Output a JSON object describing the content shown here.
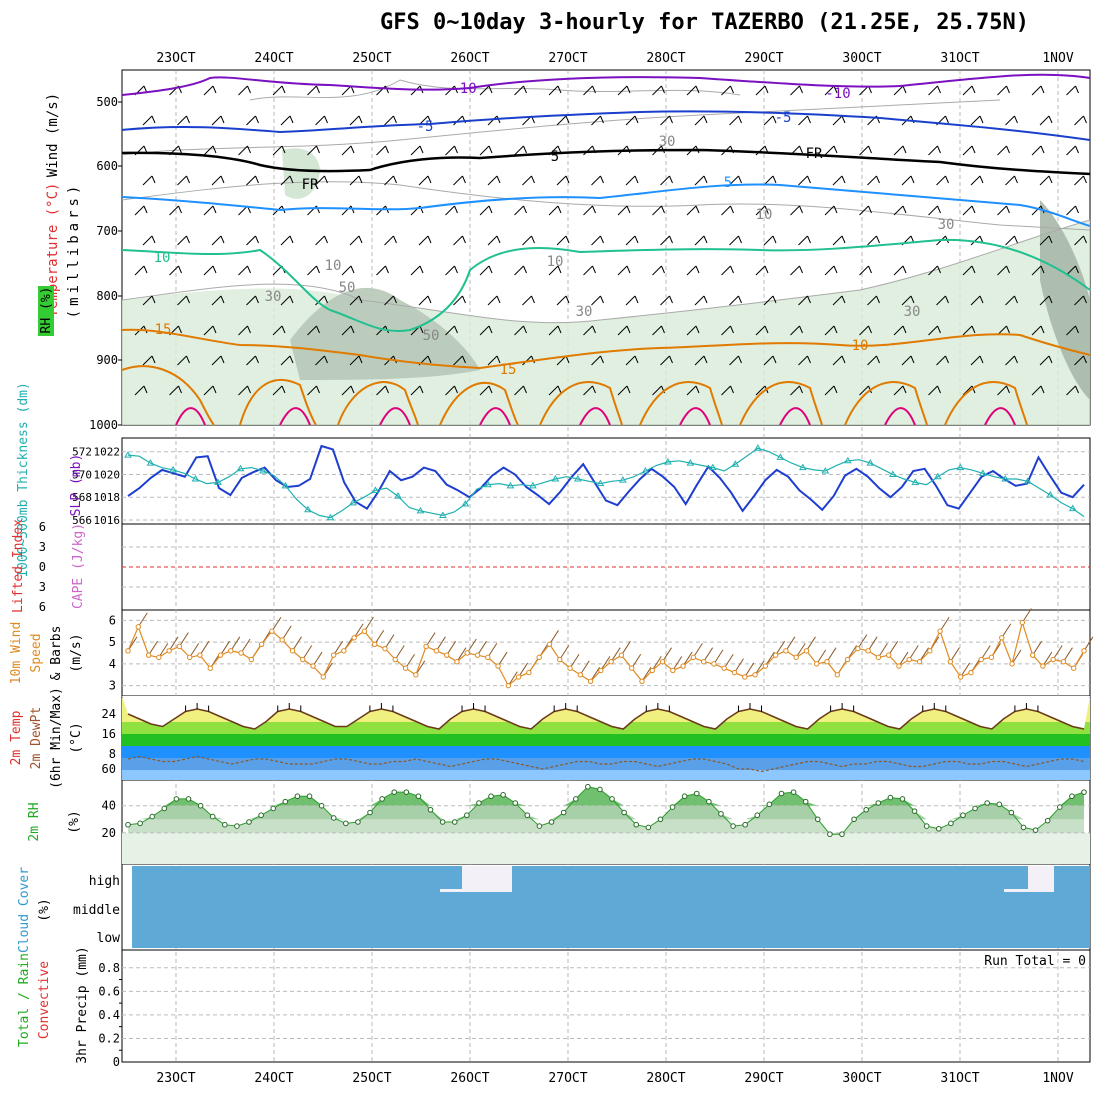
{
  "title": "GFS 0~10day 3-hourly for TAZERBO (21.25E, 25.75N)",
  "dates": [
    "23OCT",
    "24OCT",
    "25OCT",
    "26OCT",
    "27OCT",
    "28OCT",
    "29OCT",
    "30OCT",
    "31OCT",
    "1NOV"
  ],
  "colors": {
    "temp_warm": "#e07a00",
    "temp_hot": "#e0007a",
    "temp_mid": "#20c090",
    "temp_cool": "#1e90ff",
    "temp_cold": "#1a3fcc",
    "temp_vcold": "#7a10c0",
    "slp": "#1e3ed0",
    "thickness": "#20b0b0",
    "wind_speed": "#e08a20",
    "rh_fill": "#2a9d2a",
    "cloud": "#5ea9d6",
    "zero_line": "#e03030"
  },
  "panels": {
    "upper": {
      "ylabel_units": "(millibars)",
      "axis_labels": [
        {
          "text": "Wind (m/s)",
          "color": "#000"
        },
        {
          "text": "Temperature (°C)",
          "color": "#e03030"
        },
        {
          "text": "RH (%)",
          "color": "#000"
        }
      ],
      "pressure_ticks": [
        "500",
        "600",
        "700",
        "800",
        "900",
        "1000"
      ],
      "contour_labels": [
        "-10",
        "-5",
        "FR",
        "5",
        "10",
        "15",
        "15",
        "-10",
        "-5",
        "FR",
        "5",
        "10",
        "30",
        "50",
        "30",
        "50",
        "10",
        "30",
        "10",
        "30",
        "30",
        "10"
      ]
    },
    "slp": {
      "ylabel_left": "1000~500mb Thickness (dm)",
      "ylabel_right": "SLP (mb)",
      "left_ticks": [
        "572",
        "570",
        "568",
        "566"
      ],
      "right_ticks": [
        "1022",
        "1020",
        "1018",
        "1016"
      ]
    },
    "cape": {
      "ylabel_left": "Lifted Index",
      "ylabel_right": "CAPE (J/kg)",
      "ticks": [
        "6",
        "3",
        "0",
        "3",
        "6"
      ]
    },
    "wind10": {
      "ylabel_1": "10m Wind",
      "ylabel_2": "Speed",
      "ylabel_3": "& Barbs",
      "units": "(m/s)",
      "ticks": [
        "6",
        "5",
        "4",
        "3"
      ]
    },
    "temp2m": {
      "ylabel_1": "2m Temp",
      "ylabel_2": "2m DewPt",
      "ylabel_3": "(6hr Min/Max)",
      "units": "(°C)",
      "ticks": [
        "24",
        "16",
        "8",
        "60"
      ]
    },
    "rh2m": {
      "ylabel": "2m RH",
      "units": "(%)",
      "ticks": [
        "40",
        "20"
      ]
    },
    "cloud": {
      "ylabel": "Cloud Cover",
      "units": "(%)",
      "levels": [
        "high",
        "middle",
        "low"
      ]
    },
    "precip": {
      "ylabel_1": "Total / Rain",
      "ylabel_2": "Convective",
      "ylabel_3": "3hr Precip (mm)",
      "ticks": [
        "0.8",
        "0.6",
        "0.4",
        "0.2",
        "0"
      ],
      "run_total": "Run Total = 0"
    }
  },
  "chart_data": [
    {
      "type": "line",
      "title": "",
      "xlabel": "",
      "ylabel": "SLP (mb)",
      "series": [
        {
          "name": "SLP (mb)",
          "values": [
            1018.1,
            1018.8,
            1019.7,
            1020.4,
            1020.1,
            1019.8,
            1021.5,
            1021.6,
            1018.8,
            1018.2,
            1019.7,
            1020.2,
            1020.6,
            1019.5,
            1018.9,
            1019.0,
            1019.6,
            1022.5,
            1022.2,
            1019.3,
            1017.6,
            1017.0,
            1018.5,
            1020.3,
            1019.5,
            1019.8,
            1020.6,
            1020.3,
            1019.1,
            1018.6,
            1018.0,
            1018.8,
            1019.9,
            1020.6,
            1020.0,
            1018.9,
            1018.2,
            1017.4,
            1018.5,
            1019.8,
            1020.9,
            1019.3,
            1017.7,
            1017.3,
            1018.5,
            1019.6,
            1020.5,
            1019.8,
            1018.9,
            1017.4,
            1019.1,
            1020.7,
            1019.7,
            1018.4,
            1016.8,
            1018.1,
            1019.5,
            1020.4,
            1019.8,
            1018.6,
            1017.8,
            1016.9,
            1018.1,
            1019.9,
            1020.5,
            1019.8,
            1018.8,
            1018.0,
            1018.9,
            1020.3,
            1020.5,
            1019.0,
            1017.3,
            1017.0,
            1018.4,
            1019.8,
            1020.3,
            1019.6,
            1019.0,
            1019.2,
            1021.5,
            1019.9,
            1018.4,
            1018.0,
            1019.1
          ]
        },
        {
          "name": "1000~500mb Thickness (dm)",
          "values": [
            571.7,
            571.6,
            571.0,
            570.6,
            570.4,
            570.1,
            569.6,
            569.2,
            569.3,
            569.8,
            570.5,
            570.6,
            570.3,
            569.9,
            569.0,
            567.8,
            566.9,
            566.4,
            566.2,
            566.8,
            567.5,
            568.0,
            568.6,
            568.8,
            568.1,
            567.1,
            566.8,
            566.6,
            566.4,
            566.7,
            567.4,
            568.7,
            569.1,
            569.2,
            569.0,
            569.1,
            569.0,
            569.3,
            569.6,
            569.8,
            569.6,
            569.4,
            569.2,
            569.4,
            569.5,
            569.8,
            570.3,
            570.8,
            571.1,
            571.2,
            571.0,
            570.8,
            570.6,
            570.3,
            570.9,
            571.6,
            572.3,
            572.0,
            571.5,
            571.0,
            570.6,
            570.4,
            570.3,
            570.8,
            571.2,
            571.3,
            571.0,
            570.5,
            570.0,
            569.6,
            569.3,
            569.1,
            569.8,
            570.4,
            570.6,
            570.4,
            570.1,
            569.8,
            569.6,
            569.6,
            569.4,
            568.8,
            568.2,
            567.5,
            567.0,
            566.3
          ]
        }
      ]
    },
    {
      "type": "line",
      "title": "",
      "xlabel": "",
      "ylabel": "10m Wind Speed (m/s)",
      "series": [
        {
          "name": "10m Wind Speed",
          "values": [
            4.6,
            5.7,
            4.4,
            4.3,
            4.6,
            4.8,
            4.3,
            4.4,
            3.8,
            4.4,
            4.6,
            4.5,
            4.2,
            4.9,
            5.5,
            5.1,
            4.6,
            4.2,
            3.9,
            3.4,
            4.4,
            4.6,
            5.2,
            5.5,
            4.9,
            4.7,
            4.2,
            3.8,
            3.5,
            4.8,
            4.6,
            4.4,
            4.1,
            4.5,
            4.4,
            4.3,
            3.9,
            3.0,
            3.4,
            3.6,
            4.3,
            4.9,
            4.2,
            3.8,
            3.5,
            3.2,
            3.7,
            4.1,
            4.4,
            3.8,
            3.2,
            3.7,
            4.1,
            3.7,
            3.9,
            4.3,
            4.1,
            4.0,
            3.8,
            3.6,
            3.4,
            3.5,
            3.9,
            4.4,
            4.6,
            4.3,
            4.6,
            4.0,
            4.1,
            3.5,
            4.2,
            4.7,
            4.6,
            4.3,
            4.4,
            3.9,
            4.2,
            4.1,
            4.6,
            5.5,
            4.1,
            3.4,
            3.6,
            4.2,
            4.3,
            5.2,
            4.0,
            5.9,
            4.4,
            3.9,
            4.2,
            4.1,
            3.8,
            4.6
          ]
        }
      ]
    },
    {
      "type": "area",
      "title": "",
      "xlabel": "",
      "ylabel": "2m Temp (°C)",
      "series": [
        {
          "name": "2m Temp",
          "values": [
            24,
            22,
            20,
            19,
            22,
            25,
            26,
            25,
            23,
            21,
            19,
            18,
            21,
            25,
            26,
            25,
            23,
            21,
            19,
            19,
            22,
            25,
            26,
            25,
            23,
            21,
            19,
            18,
            22,
            25,
            26,
            25,
            23,
            21,
            19,
            18,
            22,
            25,
            26,
            25,
            23,
            21,
            19,
            18,
            22,
            25,
            26,
            25,
            23,
            21,
            19,
            18,
            22,
            25,
            26,
            25,
            23,
            21,
            19,
            18,
            22,
            25,
            26,
            25,
            23,
            21,
            19,
            18,
            22,
            25,
            26,
            25,
            23,
            21,
            19,
            18,
            22,
            25,
            26,
            25,
            23,
            21,
            19,
            18
          ]
        },
        {
          "name": "2m DewPt",
          "values": [
            6,
            7,
            6,
            5,
            5,
            6,
            7,
            6,
            5,
            4,
            5,
            6,
            6,
            5,
            4,
            4,
            4,
            5,
            6,
            6,
            5,
            4,
            4,
            5,
            5,
            6,
            5,
            4,
            3,
            4,
            5,
            6,
            6,
            5,
            4,
            3,
            2,
            3,
            4,
            5,
            5,
            4,
            4,
            5,
            5,
            4,
            3,
            4,
            5,
            6,
            6,
            5,
            4,
            2,
            2,
            1,
            2,
            3,
            4,
            5,
            5,
            4,
            3,
            4,
            4,
            5,
            5,
            4,
            3,
            3,
            4,
            5,
            5,
            4,
            4,
            5,
            5,
            4,
            3,
            4,
            5,
            6,
            6,
            5
          ]
        }
      ]
    },
    {
      "type": "area",
      "title": "",
      "xlabel": "",
      "ylabel": "2m RH (%)",
      "series": [
        {
          "name": "2m RH",
          "values": [
            26,
            27,
            32,
            38,
            45,
            45,
            40,
            32,
            26,
            25,
            28,
            33,
            38,
            43,
            47,
            47,
            40,
            31,
            27,
            28,
            35,
            45,
            50,
            50,
            47,
            37,
            28,
            28,
            33,
            42,
            47,
            48,
            42,
            33,
            25,
            28,
            35,
            45,
            54,
            52,
            45,
            35,
            26,
            24,
            30,
            39,
            47,
            49,
            43,
            34,
            25,
            26,
            33,
            41,
            49,
            50,
            43,
            30,
            19,
            19,
            30,
            37,
            42,
            46,
            45,
            36,
            25,
            23,
            27,
            33,
            38,
            42,
            41,
            35,
            24,
            22,
            29,
            39,
            47,
            50
          ]
        }
      ]
    },
    {
      "type": "table",
      "title": "",
      "xlabel": "",
      "ylabel": "Cloud Cover (%)",
      "categories": [
        "high",
        "middle",
        "low"
      ],
      "series": [
        {
          "name": "Cloud Cover",
          "values": [
            100,
            100,
            100
          ]
        }
      ]
    },
    {
      "type": "bar",
      "title": "",
      "xlabel": "",
      "ylabel": "3hr Precip (mm)",
      "ylim": [
        0,
        0.9
      ],
      "series": [
        {
          "name": "3hr Precip",
          "values": [
            0,
            0,
            0,
            0,
            0,
            0,
            0,
            0,
            0,
            0
          ]
        }
      ]
    }
  ]
}
